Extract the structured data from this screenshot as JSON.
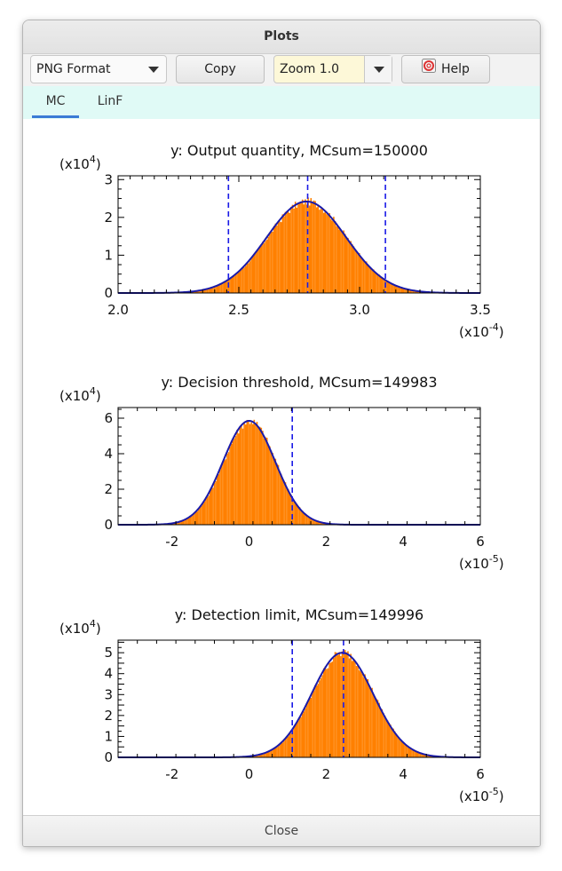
{
  "window": {
    "title": "Plots"
  },
  "toolbar": {
    "format_value": "PNG Format",
    "copy_label": "Copy",
    "zoom_value": "Zoom 1.0",
    "help_label": "Help"
  },
  "tabs": [
    {
      "label": "MC",
      "active": true
    },
    {
      "label": "LinF",
      "active": false
    }
  ],
  "footer": {
    "close_label": "Close"
  },
  "colors": {
    "bars": "#ff8000",
    "curve": "#1a1aa8",
    "dash": "#1a1ae6"
  },
  "chart_data": [
    {
      "type": "bar",
      "title": "y:  Output quantity,  MCsum=150000",
      "y_scale_label": "(x10^4)",
      "x_scale_label": "(x10^-4)",
      "x_exp": "-4",
      "y_exp": "4",
      "xlim": [
        2.0,
        3.5
      ],
      "ylim": [
        0,
        3.1
      ],
      "xticks": [
        2.0,
        2.5,
        3.0,
        3.5
      ],
      "xtick_labels": [
        "2.0",
        "2.5",
        "3.0",
        "3.5"
      ],
      "yticks": [
        0,
        1,
        2,
        3
      ],
      "ytick_labels": [
        "0",
        "1",
        "2",
        "3"
      ],
      "gauss": {
        "mean": 2.78,
        "sd": 0.165,
        "peak": 2.42
      },
      "dashed_lines": [
        2.457,
        2.785,
        3.107
      ]
    },
    {
      "type": "bar",
      "title": "y:  Decision threshold,  MCsum=149983",
      "y_scale_label": "(x10^4)",
      "x_scale_label": "(x10^-5)",
      "x_exp": "-5",
      "y_exp": "4",
      "xlim": [
        -3.4,
        6.0
      ],
      "ylim": [
        0,
        6.6
      ],
      "xticks": [
        -2,
        0,
        2,
        4,
        6
      ],
      "xtick_labels": [
        "-2",
        "0",
        "2",
        "4",
        "6"
      ],
      "yticks": [
        0,
        2,
        4,
        6
      ],
      "ytick_labels": [
        "0",
        "2",
        "4",
        "6"
      ],
      "gauss": {
        "mean": 0.0,
        "sd": 0.68,
        "peak": 5.85
      },
      "dashed_lines": [
        1.12
      ]
    },
    {
      "type": "bar",
      "title": "y:  Detection limit,  MCsum=149996",
      "y_scale_label": "(x10^4)",
      "x_scale_label": "(x10^-5)",
      "x_exp": "-5",
      "y_exp": "4",
      "xlim": [
        -3.4,
        6.0
      ],
      "ylim": [
        0,
        5.6
      ],
      "xticks": [
        -2,
        0,
        2,
        4,
        6
      ],
      "xtick_labels": [
        "-2",
        "0",
        "2",
        "4",
        "6"
      ],
      "yticks": [
        0,
        0.5,
        1,
        1.5,
        2,
        2.5,
        3,
        3.5,
        4,
        4.5,
        5,
        5.5
      ],
      "ytick_labels": [
        "0",
        "",
        "1",
        "",
        "2",
        "",
        "3",
        "",
        "4",
        "",
        "5",
        ""
      ],
      "gauss": {
        "mean": 2.42,
        "sd": 0.8,
        "peak": 5.0
      },
      "dashed_lines": [
        1.12,
        2.45
      ]
    }
  ]
}
